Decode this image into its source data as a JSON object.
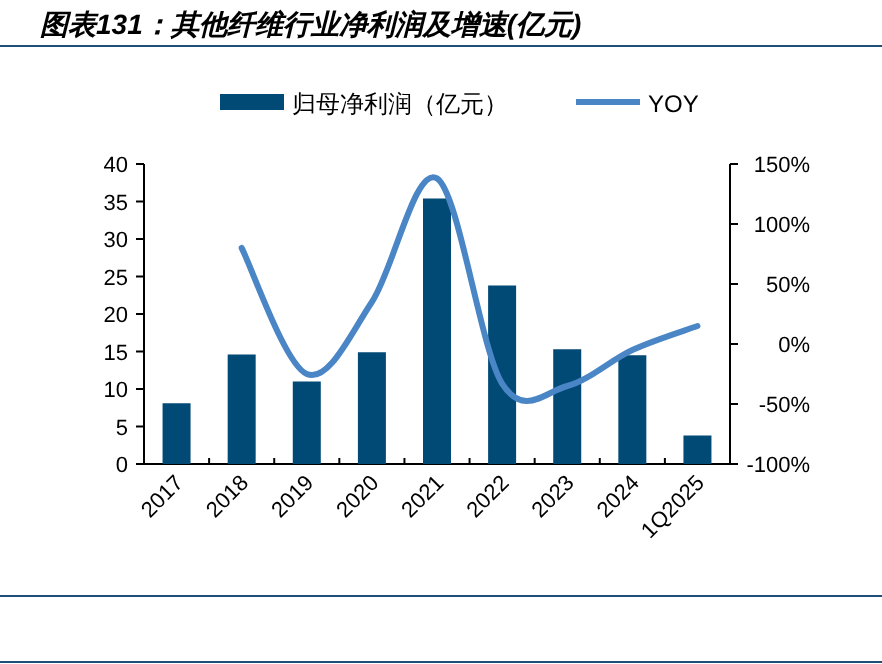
{
  "chart_data": {
    "type": "bar",
    "title": "图表131：其他纤维行业净利润及增速(亿元)",
    "categories": [
      "2017",
      "2018",
      "2019",
      "2020",
      "2021",
      "2022",
      "2023",
      "2024",
      "1Q2025"
    ],
    "series": [
      {
        "name": "归母净利润（亿元）",
        "color": "#004a75",
        "values": [
          8.1,
          14.6,
          11.0,
          14.9,
          35.4,
          23.8,
          15.3,
          14.5,
          3.8
        ]
      },
      {
        "name": "YOY",
        "type": "line",
        "axis": "y2",
        "color": "#4a86c5",
        "values": [
          null,
          80,
          -25,
          35,
          138,
          -33,
          -35,
          -5,
          15
        ]
      }
    ],
    "ylim": [
      0,
      40
    ],
    "yticks": [
      0,
      5,
      10,
      15,
      20,
      25,
      30,
      35,
      40
    ],
    "y2lim": [
      -100,
      150
    ],
    "y2ticks": [
      {
        "value": -100,
        "label": "-100%"
      },
      {
        "value": -50,
        "label": "-50%"
      },
      {
        "value": 0,
        "label": "0%"
      },
      {
        "value": 50,
        "label": "50%"
      },
      {
        "value": 100,
        "label": "100%"
      },
      {
        "value": 150,
        "label": "150%"
      }
    ],
    "legend": "top",
    "grid": false
  }
}
